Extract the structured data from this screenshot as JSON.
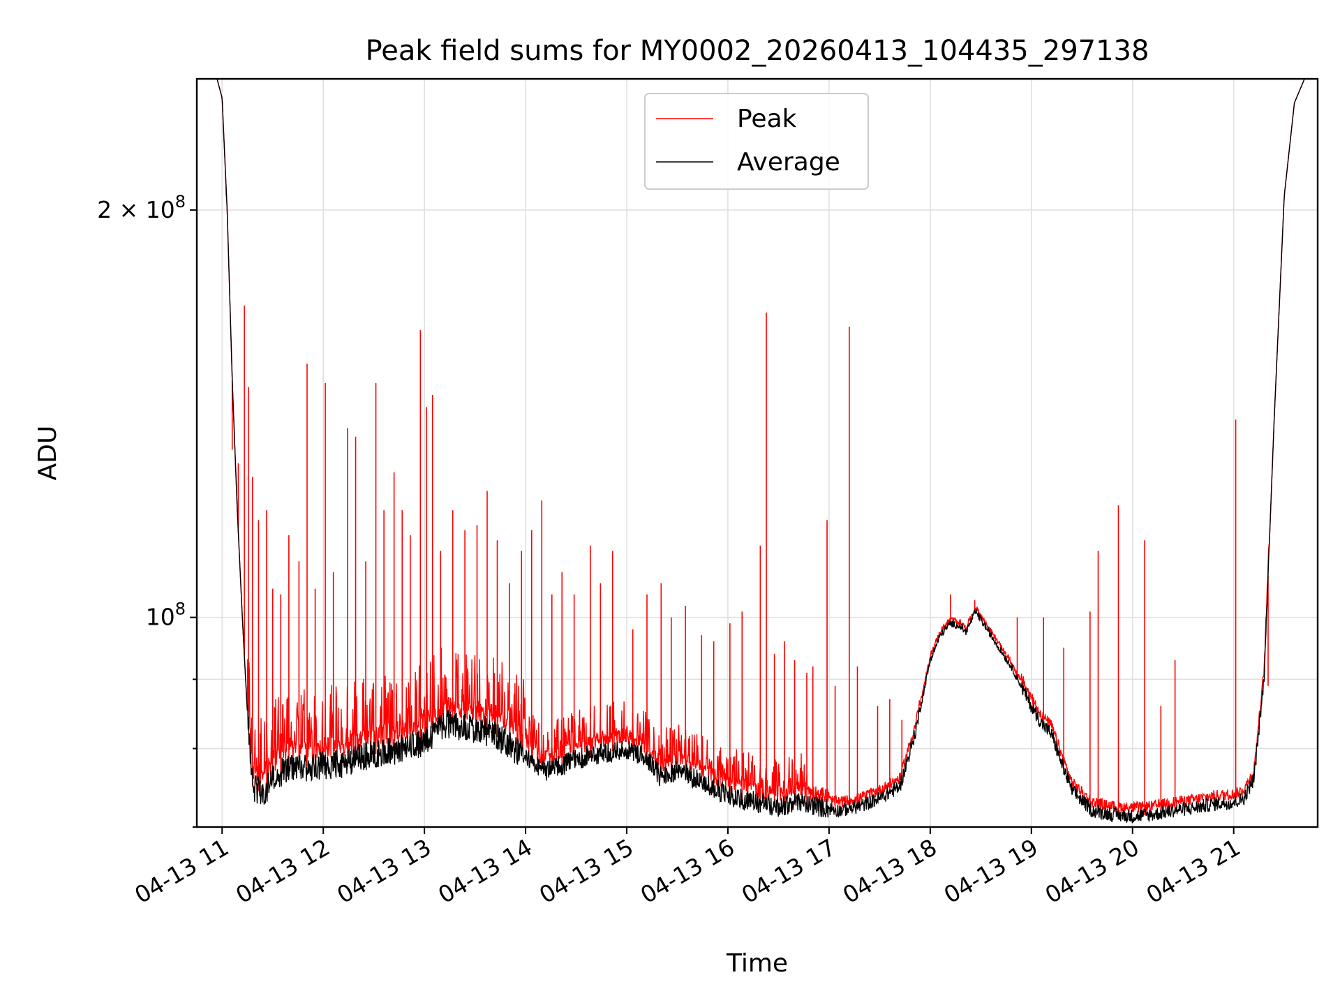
{
  "chart_data": {
    "type": "line",
    "title": "Peak field sums for MY0002_20260413_104435_297138",
    "xlabel": "Time",
    "ylabel": "ADU",
    "yscale": "log",
    "xlim": [
      10.75,
      21.83
    ],
    "ylim": [
      70000000,
      250000000
    ],
    "grid": true,
    "legend": {
      "position": "top-center",
      "entries": [
        "Peak",
        "Average"
      ]
    },
    "x_ticks": [
      {
        "value": 11,
        "label": "04-13 11"
      },
      {
        "value": 12,
        "label": "04-13 12"
      },
      {
        "value": 13,
        "label": "04-13 13"
      },
      {
        "value": 14,
        "label": "04-13 14"
      },
      {
        "value": 15,
        "label": "04-13 15"
      },
      {
        "value": 16,
        "label": "04-13 16"
      },
      {
        "value": 17,
        "label": "04-13 17"
      },
      {
        "value": 18,
        "label": "04-13 18"
      },
      {
        "value": 19,
        "label": "04-13 19"
      },
      {
        "value": 20,
        "label": "04-13 20"
      },
      {
        "value": 21,
        "label": "04-13 21"
      }
    ],
    "y_major_ticks": [
      {
        "value": 100000000,
        "mantissa": "",
        "base": "10",
        "exp": "8"
      },
      {
        "value": 200000000,
        "mantissa": "2 × ",
        "base": "10",
        "exp": "8"
      }
    ],
    "y_minor_ticks": [
      70000000,
      80000000,
      90000000
    ],
    "series": [
      {
        "name": "Average",
        "color": "#000000",
        "x": [
          10.75,
          10.95,
          11.0,
          11.05,
          11.1,
          11.15,
          11.2,
          11.25,
          11.3,
          11.4,
          11.5,
          11.6,
          11.8,
          12.0,
          12.2,
          12.4,
          12.6,
          12.8,
          13.0,
          13.2,
          13.4,
          13.6,
          13.8,
          14.0,
          14.2,
          14.4,
          14.6,
          14.8,
          15.0,
          15.2,
          15.35,
          15.5,
          15.7,
          15.9,
          16.1,
          16.3,
          16.5,
          16.7,
          16.9,
          17.1,
          17.3,
          17.5,
          17.7,
          17.85,
          18.0,
          18.1,
          18.2,
          18.3,
          18.35,
          18.45,
          18.6,
          18.8,
          19.0,
          19.1,
          19.2,
          19.3,
          19.4,
          19.6,
          19.8,
          20.0,
          20.2,
          20.4,
          20.6,
          20.8,
          21.0,
          21.1,
          21.2,
          21.3,
          21.4,
          21.5,
          21.6,
          21.7,
          21.83
        ],
        "y": [
          250000000,
          250000000,
          242000000,
          200000000,
          150000000,
          120000000,
          100000000,
          85000000,
          75000000,
          74000000,
          76000000,
          77000000,
          77500000,
          77800000,
          78000000,
          79000000,
          79500000,
          80000000,
          81000000,
          83500000,
          83000000,
          82500000,
          81000000,
          78500000,
          77000000,
          78000000,
          79000000,
          79500000,
          80000000,
          78500000,
          76000000,
          77000000,
          76000000,
          74500000,
          73500000,
          73000000,
          72500000,
          73000000,
          72500000,
          72000000,
          72500000,
          73500000,
          75000000,
          82000000,
          93000000,
          97000000,
          99000000,
          98500000,
          97500000,
          101000000,
          97000000,
          92000000,
          86000000,
          83500000,
          82000000,
          78000000,
          74500000,
          72000000,
          71500000,
          71300000,
          71500000,
          72000000,
          72300000,
          72800000,
          73000000,
          73500000,
          76000000,
          90000000,
          140000000,
          205000000,
          240000000,
          250000000,
          250000000
        ]
      },
      {
        "name": "Peak",
        "color": "#ff0000",
        "spikes": [
          [
            11.04,
            205000000
          ],
          [
            11.1,
            133000000
          ],
          [
            11.16,
            130000000
          ],
          [
            11.22,
            170000000
          ],
          [
            11.26,
            148000000
          ],
          [
            11.3,
            127000000
          ],
          [
            11.36,
            118000000
          ],
          [
            11.44,
            120000000
          ],
          [
            11.5,
            105000000
          ],
          [
            11.58,
            104000000
          ],
          [
            11.66,
            115000000
          ],
          [
            11.76,
            110000000
          ],
          [
            11.84,
            154000000
          ],
          [
            11.92,
            105000000
          ],
          [
            12.02,
            149000000
          ],
          [
            12.1,
            108000000
          ],
          [
            12.24,
            138000000
          ],
          [
            12.32,
            136000000
          ],
          [
            12.42,
            110000000
          ],
          [
            12.52,
            149000000
          ],
          [
            12.6,
            120000000
          ],
          [
            12.7,
            128000000
          ],
          [
            12.78,
            120000000
          ],
          [
            12.86,
            115000000
          ],
          [
            12.96,
            163000000
          ],
          [
            13.02,
            143000000
          ],
          [
            13.08,
            146000000
          ],
          [
            13.16,
            112000000
          ],
          [
            13.28,
            120000000
          ],
          [
            13.4,
            116000000
          ],
          [
            13.52,
            117000000
          ],
          [
            13.62,
            124000000
          ],
          [
            13.72,
            114000000
          ],
          [
            13.84,
            106000000
          ],
          [
            13.96,
            112000000
          ],
          [
            14.06,
            116000000
          ],
          [
            14.16,
            122000000
          ],
          [
            14.26,
            104000000
          ],
          [
            14.36,
            108000000
          ],
          [
            14.48,
            104000000
          ],
          [
            14.64,
            113000000
          ],
          [
            14.74,
            106000000
          ],
          [
            14.86,
            112000000
          ],
          [
            15.06,
            98000000
          ],
          [
            15.2,
            104000000
          ],
          [
            15.34,
            106000000
          ],
          [
            15.44,
            100000000
          ],
          [
            15.58,
            102000000
          ],
          [
            15.74,
            97000000
          ],
          [
            15.86,
            96000000
          ],
          [
            16.02,
            99000000
          ],
          [
            16.14,
            101000000
          ],
          [
            16.32,
            113000000
          ],
          [
            16.38,
            168000000
          ],
          [
            16.46,
            94000000
          ],
          [
            16.56,
            96000000
          ],
          [
            16.66,
            93000000
          ],
          [
            16.78,
            91000000
          ],
          [
            16.84,
            92000000
          ],
          [
            16.98,
            118000000
          ],
          [
            17.06,
            89000000
          ],
          [
            17.2,
            164000000
          ],
          [
            17.28,
            92000000
          ],
          [
            17.48,
            86000000
          ],
          [
            17.6,
            87000000
          ],
          [
            17.72,
            84000000
          ],
          [
            18.2,
            104000000
          ],
          [
            18.44,
            103000000
          ],
          [
            18.86,
            100000000
          ],
          [
            19.12,
            100000000
          ],
          [
            19.32,
            95000000
          ],
          [
            19.58,
            101000000
          ],
          [
            19.66,
            112000000
          ],
          [
            19.86,
            121000000
          ],
          [
            20.12,
            114000000
          ],
          [
            20.42,
            93000000
          ],
          [
            20.28,
            86000000
          ],
          [
            21.02,
            140000000
          ],
          [
            21.34,
            89000000
          ]
        ]
      }
    ]
  }
}
